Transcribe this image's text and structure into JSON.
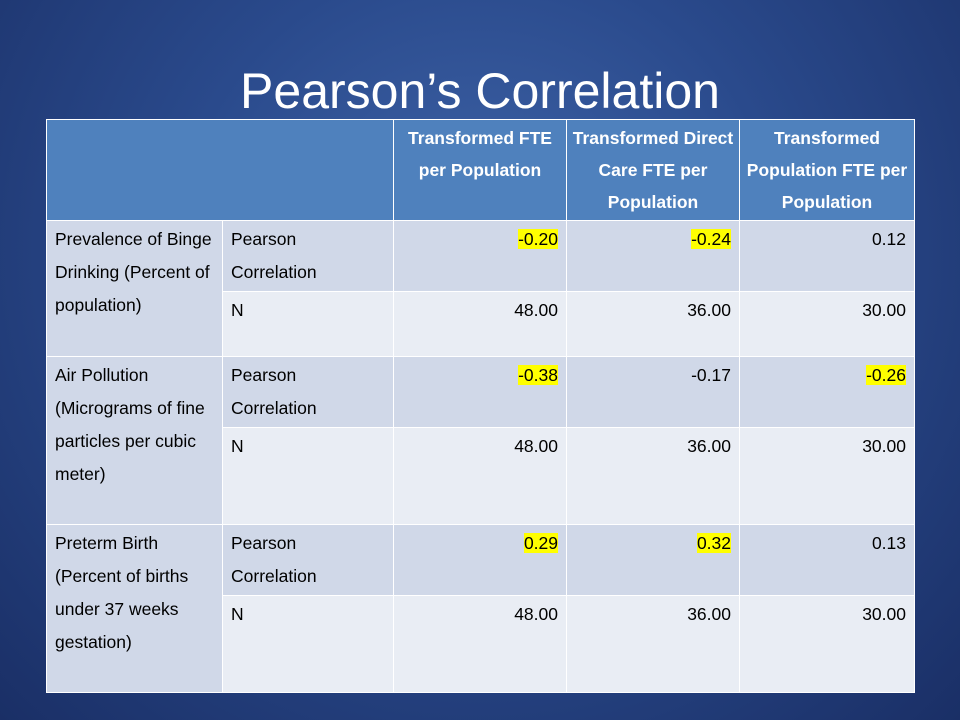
{
  "title": "Pearson’s Correlation",
  "table": {
    "headers": [
      "",
      "Transformed FTE per Population",
      "Transformed Direct Care FTE per Population",
      "Transformed Population FTE per Population"
    ],
    "groups": [
      {
        "label": "Prevalence of Binge Drinking (Percent of population)",
        "pearson_label": "Pearson Correlation",
        "pearson": [
          {
            "value": "-0.20",
            "highlight": true
          },
          {
            "value": "-0.24",
            "highlight": true
          },
          {
            "value": "0.12",
            "highlight": false
          }
        ],
        "n_label": "N",
        "n": [
          "48.00",
          "36.00",
          "30.00"
        ]
      },
      {
        "label": "Air Pollution (Micrograms of fine particles per cubic meter)",
        "pearson_label": "Pearson Correlation",
        "pearson": [
          {
            "value": "-0.38",
            "highlight": true
          },
          {
            "value": "-0.17",
            "highlight": false
          },
          {
            "value": "-0.26",
            "highlight": true
          }
        ],
        "n_label": "N",
        "n": [
          "48.00",
          "36.00",
          "30.00"
        ]
      },
      {
        "label": "Preterm Birth (Percent of births under 37 weeks gestation)",
        "pearson_label": "Pearson Correlation",
        "pearson": [
          {
            "value": "0.29",
            "highlight": true
          },
          {
            "value": "0.32",
            "highlight": true
          },
          {
            "value": "0.13",
            "highlight": false
          }
        ],
        "n_label": "N",
        "n": [
          "48.00",
          "36.00",
          "30.00"
        ]
      }
    ]
  },
  "colors": {
    "header_bg": "#4f81bd",
    "row_dark": "#d0d8e8",
    "row_light": "#e9edf4",
    "highlight": "#ffff00"
  }
}
